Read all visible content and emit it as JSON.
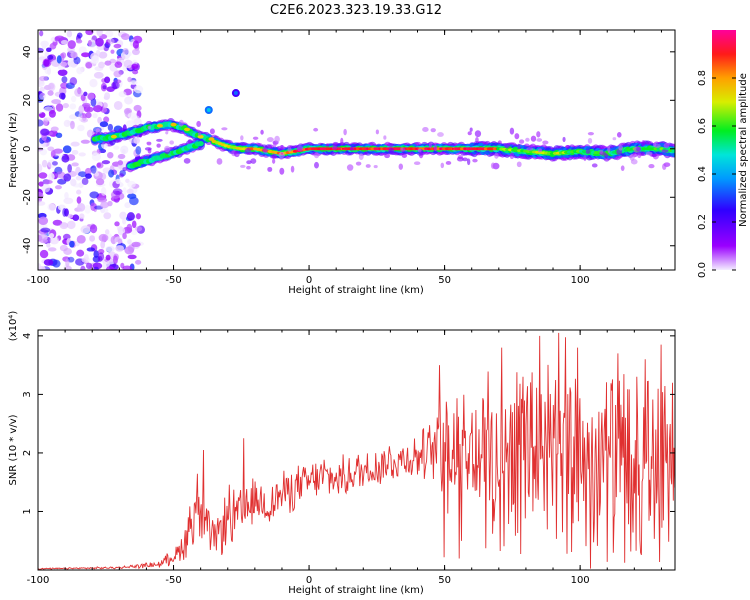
{
  "figure": {
    "title": "C2E6.2023.323.19.33.G12"
  },
  "chart_data": [
    {
      "type": "heatmap",
      "xlabel": "Height of straight line (km)",
      "ylabel": "Frequency (Hz)",
      "xlim": [
        -100,
        135
      ],
      "ylim": [
        -50,
        49
      ],
      "xticks": [
        -100,
        -50,
        0,
        50,
        100
      ],
      "yticks": [
        -40,
        -20,
        0,
        20,
        40
      ],
      "colorbar": {
        "label": "Normalized spectral amplitude",
        "range": [
          0,
          1
        ],
        "ticks": [
          "0.0",
          "0.2",
          "0.4",
          "0.6",
          "0.8"
        ],
        "colors": [
          "#f4eeff",
          "#9a00ff",
          "#2f00ff",
          "#0099ff",
          "#00e5d9",
          "#00ee20",
          "#d8ee00",
          "#ffa000",
          "#ff1a1a",
          "#ff009a"
        ]
      },
      "ridge": {
        "upper_branch": [
          [
            -79,
            4
          ],
          [
            -72,
            5
          ],
          [
            -65,
            7
          ],
          [
            -58,
            9
          ],
          [
            -52,
            10
          ],
          [
            -47,
            9
          ],
          [
            -42,
            6
          ],
          [
            -37,
            4
          ]
        ],
        "lower_branch": [
          [
            -66,
            -7
          ],
          [
            -60,
            -5
          ],
          [
            -53,
            -3
          ],
          [
            -46,
            0
          ],
          [
            -40,
            2
          ]
        ],
        "main": [
          [
            -35,
            3
          ],
          [
            -30,
            1
          ],
          [
            -25,
            0
          ],
          [
            -20,
            0
          ],
          [
            -15,
            -1
          ],
          [
            -10,
            -2
          ],
          [
            -5,
            -1
          ],
          [
            0,
            0
          ],
          [
            10,
            0
          ],
          [
            20,
            0
          ],
          [
            30,
            0
          ],
          [
            40,
            0
          ],
          [
            50,
            0
          ],
          [
            60,
            0
          ],
          [
            70,
            0
          ],
          [
            80,
            -1
          ],
          [
            90,
            -2
          ],
          [
            100,
            -1
          ],
          [
            110,
            -2
          ],
          [
            120,
            0
          ],
          [
            130,
            0
          ],
          [
            135,
            -1
          ]
        ]
      },
      "features": [
        {
          "x": -37,
          "y": 16,
          "level": 0.3
        },
        {
          "x": -27,
          "y": 23,
          "level": 0.2
        }
      ],
      "noise_region_x": [
        -100,
        -62
      ]
    },
    {
      "type": "line",
      "xlabel": "Height of straight line (km)",
      "ylabel": "SNR (10 * v/v)",
      "y_multiplier": "(x10⁴)",
      "xlim": [
        -100,
        135
      ],
      "ylim": [
        0,
        4.1
      ],
      "xticks": [
        -100,
        -50,
        0,
        50,
        100
      ],
      "yticks": [
        1,
        2,
        3,
        4
      ],
      "series": [
        {
          "color": "#e03030",
          "envelope_x": [
            -100,
            -70,
            -55,
            -48,
            -45,
            -42,
            -39,
            -35,
            -30,
            -25,
            -20,
            -15,
            -10,
            -5,
            0,
            5,
            10,
            20,
            30,
            40,
            46,
            48,
            55,
            60,
            70,
            75,
            80,
            85,
            90,
            95,
            100,
            105,
            110,
            115,
            120,
            125,
            130,
            135
          ],
          "envelope_mid": [
            0.02,
            0.04,
            0.1,
            0.3,
            0.6,
            1.1,
            0.8,
            0.5,
            0.9,
            0.9,
            1.2,
            1.1,
            1.3,
            1.4,
            1.5,
            1.6,
            1.55,
            1.7,
            1.85,
            1.95,
            2.0,
            2.0,
            2.1,
            2.0,
            2.0,
            2.1,
            2.0,
            2.1,
            2.0,
            1.9,
            2.0,
            1.8,
            1.9,
            1.9,
            1.8,
            1.9,
            1.8,
            1.9
          ],
          "envelope_amp": [
            0.01,
            0.02,
            0.06,
            0.2,
            0.4,
            0.9,
            0.5,
            0.3,
            0.6,
            0.5,
            0.4,
            0.4,
            0.4,
            0.4,
            0.35,
            0.4,
            0.35,
            0.4,
            0.4,
            0.4,
            0.6,
            1.5,
            1.1,
            1.3,
            1.4,
            1.7,
            1.9,
            1.8,
            2.0,
            2.0,
            1.8,
            1.8,
            1.7,
            1.6,
            1.7,
            1.8,
            1.6,
            1.6
          ]
        }
      ],
      "peaks": [
        {
          "x": -39,
          "y": 2.05
        },
        {
          "x": -24,
          "y": 2.25
        },
        {
          "x": 48,
          "y": 3.5
        },
        {
          "x": 71,
          "y": 3.8
        },
        {
          "x": 79,
          "y": 3.3
        },
        {
          "x": 85,
          "y": 4.0
        },
        {
          "x": 92,
          "y": 4.05
        },
        {
          "x": 99,
          "y": 3.8
        },
        {
          "x": 114,
          "y": 3.7
        },
        {
          "x": 124,
          "y": 3.6
        },
        {
          "x": 130,
          "y": 3.85
        },
        {
          "x": 134,
          "y": 3.2
        }
      ]
    }
  ]
}
